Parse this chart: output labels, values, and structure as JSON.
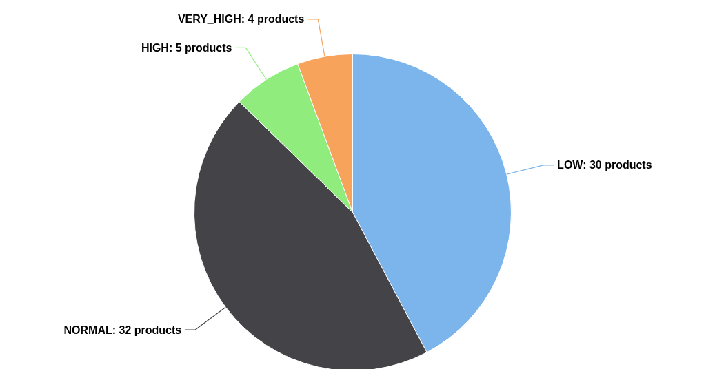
{
  "chart_data": {
    "type": "pie",
    "categories": [
      "LOW",
      "NORMAL",
      "HIGH",
      "VERY_HIGH"
    ],
    "values": [
      30,
      32,
      5,
      4
    ],
    "colors": [
      "#7cb5ec",
      "#434348",
      "#90ed7d",
      "#f7a35c"
    ],
    "value_labels": [
      "30 products",
      "32 products",
      "5 products",
      "4 products"
    ]
  }
}
